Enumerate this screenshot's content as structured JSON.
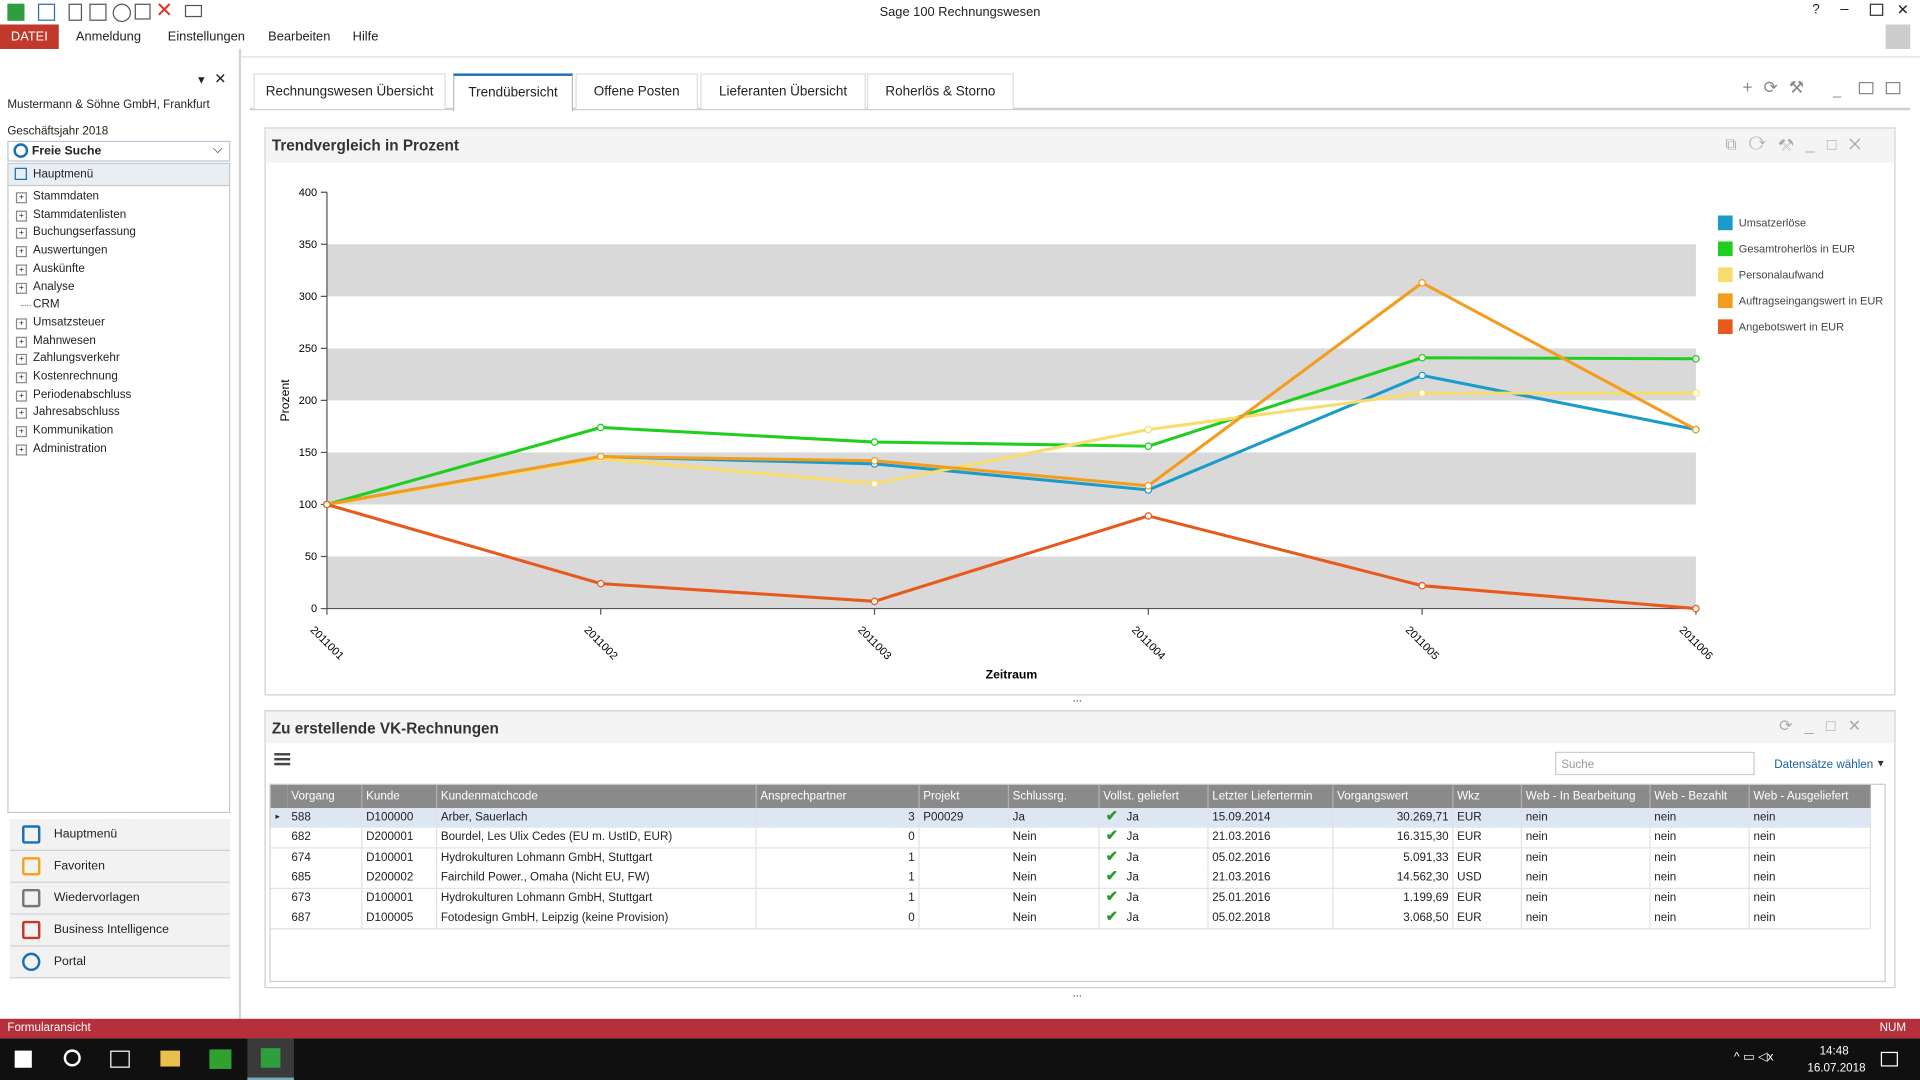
{
  "app_title": "Sage 100 Rechnungswesen",
  "menu": [
    "DATEI",
    "Anmeldung",
    "Einstellungen",
    "Bearbeiten",
    "Hilfe"
  ],
  "sidebar": {
    "company": "Mustermann & Söhne GmbH, Frankfurt",
    "fiscal_year": "Geschäftsjahr 2018",
    "search": "Freie Suche",
    "main_menu": "Hauptmenü",
    "tree": [
      {
        "label": "Stammdaten",
        "expandable": true
      },
      {
        "label": "Stammdatenlisten",
        "expandable": true
      },
      {
        "label": "Buchungserfassung",
        "expandable": true
      },
      {
        "label": "Auswertungen",
        "expandable": true
      },
      {
        "label": "Auskünfte",
        "expandable": true
      },
      {
        "label": "Analyse",
        "expandable": true
      },
      {
        "label": "CRM",
        "expandable": false
      },
      {
        "label": "Umsatzsteuer",
        "expandable": true
      },
      {
        "label": "Mahnwesen",
        "expandable": true
      },
      {
        "label": "Zahlungsverkehr",
        "expandable": true
      },
      {
        "label": "Kostenrechnung",
        "expandable": true
      },
      {
        "label": "Periodenabschluss",
        "expandable": true
      },
      {
        "label": "Jahresabschluss",
        "expandable": true
      },
      {
        "label": "Kommunikation",
        "expandable": true
      },
      {
        "label": "Administration",
        "expandable": true
      }
    ],
    "nav": [
      "Hauptmenü",
      "Favoriten",
      "Wiedervorlagen",
      "Business Intelligence",
      "Portal"
    ]
  },
  "tabs": [
    "Rechnungswesen Übersicht",
    "Trendübersicht",
    "Offene Posten",
    "Lieferanten Übersicht",
    "Roherlös & Storno"
  ],
  "active_tab": 1,
  "chart_panel_title": "Trendvergleich in Prozent",
  "chart_data": {
    "type": "line",
    "x_label": "Zeitraum",
    "y_label": "Prozent",
    "categories": [
      "2011001",
      "2011002",
      "2011003",
      "2011004",
      "2011005",
      "2011006"
    ],
    "series": [
      {
        "name": "Umsatzerlöse",
        "color": "#1a9bc9",
        "values": [
          100,
          146,
          139,
          114,
          224,
          172
        ]
      },
      {
        "name": "Gesamtroherlös in EUR",
        "color": "#1fcf1f",
        "values": [
          100,
          174,
          160,
          156,
          241,
          240
        ]
      },
      {
        "name": "Personalaufwand",
        "color": "#f8dc6c",
        "values": [
          100,
          144,
          120,
          172,
          207,
          207
        ]
      },
      {
        "name": "Auftragseingangswert in EUR",
        "color": "#f39c1e",
        "values": [
          100,
          146,
          142,
          118,
          313,
          172
        ]
      },
      {
        "name": "Angebotswert in EUR",
        "color": "#e85a1c",
        "values": [
          100,
          24,
          7,
          89,
          22,
          0
        ]
      }
    ],
    "ylim": [
      0,
      400
    ],
    "yticks": [
      0,
      50,
      100,
      150,
      200,
      250,
      300,
      350,
      400
    ],
    "grid": "bands",
    "legend": "right"
  },
  "table": {
    "title": "Zu erstellende VK-Rechnungen",
    "search_placeholder": "Suche",
    "select": "Datensätze wählen",
    "selected_row": 0,
    "columns": [
      "Vorgang",
      "Kunde",
      "Kundenmatchcode",
      "Ansprechpartner",
      "Projekt",
      "Schlussrg.",
      "Vollst. geliefert",
      "Letzter Liefertermin",
      "Vorgangswert",
      "Wkz",
      "Web - In Bearbeitung",
      "Web - Bezahlt",
      "Web - Ausgeliefert"
    ],
    "rows": [
      [
        "588",
        "D100000",
        "Arber, Sauerlach",
        "3",
        "P00029",
        "Ja",
        "Ja",
        "15.09.2014",
        "30.269,71",
        "EUR",
        "nein",
        "nein",
        "nein"
      ],
      [
        "682",
        "D200001",
        "Bourdel, Les Ulix Cedes (EU m. UstID, EUR)",
        "0",
        null,
        "Nein",
        "Ja",
        "21.03.2016",
        "16.315,30",
        "EUR",
        "nein",
        "nein",
        "nein"
      ],
      [
        "674",
        "D100001",
        "Hydrokulturen Lohmann GmbH, Stuttgart",
        "1",
        null,
        "Nein",
        "Ja",
        "05.02.2016",
        "5.091,33",
        "EUR",
        "nein",
        "nein",
        "nein"
      ],
      [
        "685",
        "D200002",
        "Fairchild Power., Omaha (Nicht EU, FW)",
        "1",
        null,
        "Nein",
        "Ja",
        "21.03.2016",
        "14.562,30",
        "USD",
        "nein",
        "nein",
        "nein"
      ],
      [
        "673",
        "D100001",
        "Hydrokulturen Lohmann GmbH, Stuttgart",
        "1",
        null,
        "Nein",
        "Ja",
        "25.01.2016",
        "1.199,69",
        "EUR",
        "nein",
        "nein",
        "nein"
      ],
      [
        "687",
        "D100005",
        "Fotodesign GmbH, Leipzig  (keine Provision)",
        "0",
        null,
        "Nein",
        "Ja",
        "05.02.2018",
        "3.068,50",
        "EUR",
        "nein",
        "nein",
        "nein"
      ]
    ]
  },
  "status": {
    "left": "Formularansicht",
    "right": "NUM"
  },
  "taskbar": {
    "time": "14:48",
    "date": "16.07.2018"
  }
}
